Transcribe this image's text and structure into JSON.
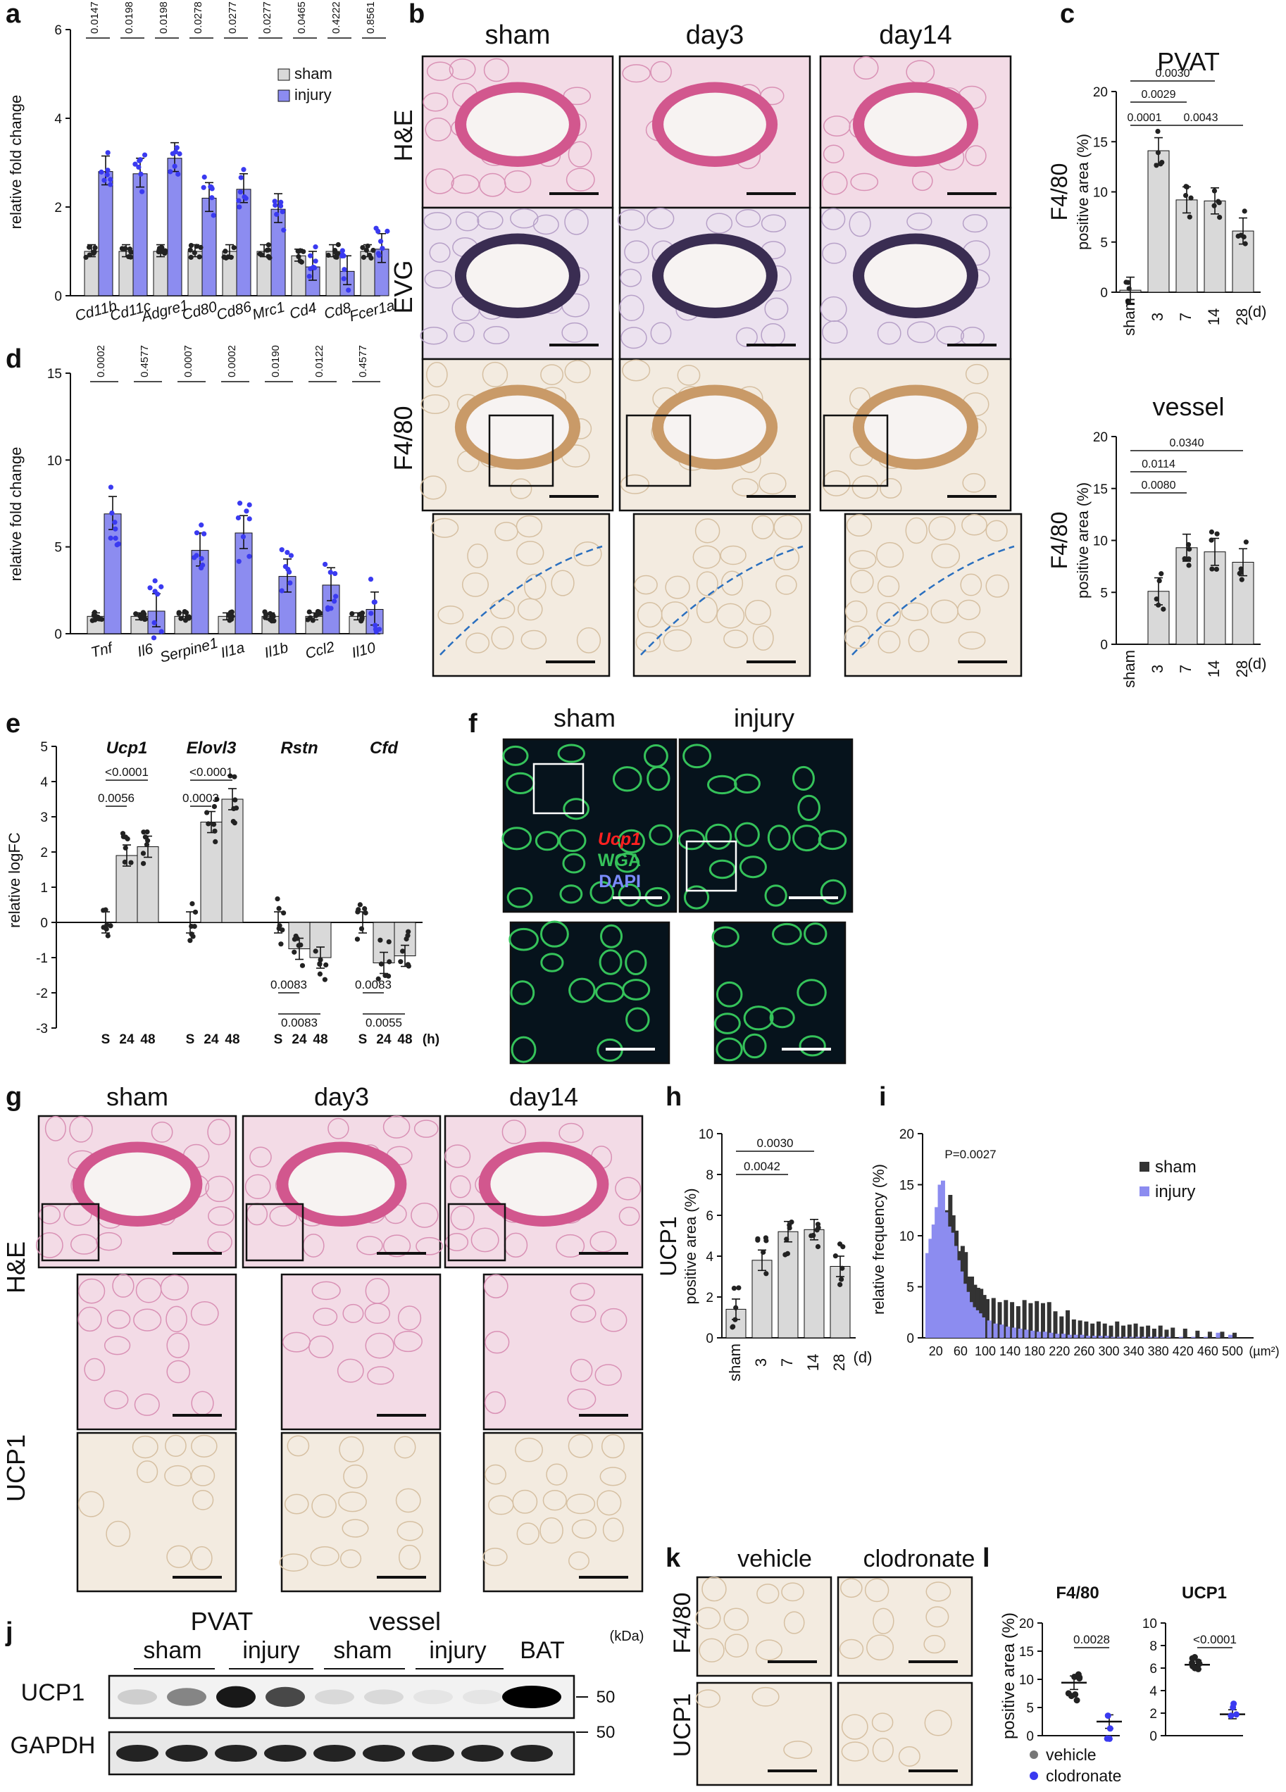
{
  "panels": {
    "a": {
      "label": "a",
      "ylabel": "relative fold change",
      "yticks": [
        "0",
        "2",
        "4",
        "6"
      ],
      "genes": [
        "Cd11b",
        "Cd11c",
        "Adgre1",
        "Cd80",
        "Cd86",
        "Mrc1",
        "Cd4",
        "Cd8",
        "Fcer1a"
      ],
      "pvalues": [
        "0.0147",
        "0.0198",
        "0.0198",
        "0.0278",
        "0.0277",
        "0.0277",
        "0.0465",
        "0.4222",
        "0.8561"
      ],
      "legend": [
        "sham",
        "injury"
      ]
    },
    "b": {
      "label": "b",
      "cols": [
        "sham",
        "day3",
        "day14"
      ],
      "rows": [
        "H&E",
        "EVG",
        "F4/80"
      ]
    },
    "c": {
      "label": "c",
      "titles": [
        "PVAT",
        "vessel"
      ],
      "ylabel1": "F4/80",
      "ylabel2": "positive area (%)",
      "yticks": [
        "0",
        "5",
        "10",
        "15",
        "20"
      ],
      "xcats": [
        "sham",
        "3",
        "7",
        "14",
        "28"
      ],
      "xunit": "(d)",
      "pvat_p": [
        "0.0030",
        "0.0029",
        "0.0001",
        "0.0043"
      ],
      "vessel_p": [
        "0.0340",
        "0.0114",
        "0.0080"
      ]
    },
    "d": {
      "label": "d",
      "ylabel": "relative fold change",
      "yticks": [
        "0",
        "5",
        "10",
        "15"
      ],
      "genes": [
        "Tnf",
        "Il6",
        "Serpine1",
        "Il1a",
        "Il1b",
        "Ccl2",
        "Il10"
      ],
      "pvalues": [
        "0.0002",
        "0.4577",
        "0.0007",
        "0.0002",
        "0.0190",
        "0.0122",
        "0.4577"
      ]
    },
    "e": {
      "label": "e",
      "ylabel": "relative logFC",
      "yticks": [
        "-3",
        "-2",
        "-1",
        "0",
        "1",
        "2",
        "3",
        "4",
        "5"
      ],
      "genes": [
        "Ucp1",
        "Elovl3",
        "Rstn",
        "Cfd"
      ],
      "xcats": [
        "S",
        "24",
        "48"
      ],
      "xunit": "(h)",
      "ucp1_p": [
        "<0.0001",
        "0.0056"
      ],
      "elovl3_p": [
        "<0.0001",
        "0.0003"
      ],
      "rstn_p": [
        "0.0083",
        "0.0083"
      ],
      "cfd_p": [
        "0.0083",
        "0.0055"
      ]
    },
    "f": {
      "label": "f",
      "cols": [
        "sham",
        "injury"
      ],
      "stains": [
        "Ucp1",
        "WGA",
        "DAPI"
      ]
    },
    "g": {
      "label": "g",
      "cols": [
        "sham",
        "day3",
        "day14"
      ],
      "rows": [
        "H&E",
        "UCP1"
      ]
    },
    "h": {
      "label": "h",
      "ylabel1": "UCP1",
      "ylabel2": "positive area (%)",
      "yticks": [
        "0",
        "2",
        "4",
        "6",
        "8",
        "10"
      ],
      "xcats": [
        "sham",
        "3",
        "7",
        "14",
        "28"
      ],
      "xunit": "(d)",
      "pvalues": [
        "0.0030",
        "0.0042"
      ]
    },
    "i": {
      "label": "i",
      "ylabel": "relative frequency (%)",
      "yticks": [
        "0",
        "5",
        "10",
        "15",
        "20"
      ],
      "xticks": [
        "20",
        "60",
        "100",
        "140",
        "180",
        "220",
        "260",
        "300",
        "340",
        "380",
        "420",
        "460",
        "500"
      ],
      "xunit": "(µm²)",
      "pvalue": "P=0.0027",
      "legend": [
        "sham",
        "injury"
      ]
    },
    "j": {
      "label": "j",
      "groups": [
        "PVAT",
        "vessel"
      ],
      "sub": [
        "sham",
        "injury",
        "sham",
        "injury",
        "BAT"
      ],
      "rows": [
        "UCP1",
        "GAPDH"
      ],
      "kda_label": "(kDa)",
      "kda": [
        "50",
        "50"
      ]
    },
    "k": {
      "label": "k",
      "cols": [
        "vehicle",
        "clodronate"
      ],
      "rows": [
        "F4/80",
        "UCP1"
      ]
    },
    "l": {
      "label": "l",
      "titles": [
        "F4/80",
        "UCP1"
      ],
      "ylabel": "positive area (%)",
      "yticks_f480": [
        "0",
        "5",
        "10",
        "15",
        "20"
      ],
      "yticks_ucp1": [
        "0",
        "2",
        "4",
        "6",
        "8",
        "10"
      ],
      "pvalues": [
        "0.0028",
        "<0.0001"
      ],
      "legend": [
        "vehicle",
        "clodronate"
      ]
    }
  },
  "colors": {
    "sham": "#d9d9d9",
    "injury": "#8c8cf0",
    "dot_sham": "#222222",
    "dot_injury": "#3a3af0",
    "he": "#e7a9c4",
    "evg": "#cdb7d8",
    "dab": "#e9d6bd",
    "fluor": "#0b2a3a"
  },
  "chart_data": [
    {
      "id": "a",
      "type": "bar",
      "categories": [
        "Cd11b",
        "Cd11c",
        "Adgre1",
        "Cd80",
        "Cd86",
        "Mrc1",
        "Cd4",
        "Cd8",
        "Fcer1a"
      ],
      "series": [
        {
          "name": "sham",
          "values": [
            1.0,
            1.0,
            1.0,
            1.0,
            1.0,
            1.0,
            0.9,
            1.0,
            1.0
          ]
        },
        {
          "name": "injury",
          "values": [
            2.8,
            2.75,
            3.1,
            2.2,
            2.4,
            1.95,
            0.65,
            0.55,
            1.05
          ]
        }
      ],
      "ylabel": "relative fold change",
      "ylim": [
        0,
        6
      ]
    },
    {
      "id": "c-pvat",
      "type": "bar",
      "categories": [
        "sham",
        "3",
        "7",
        "14",
        "28"
      ],
      "values": [
        0.2,
        14.1,
        9.2,
        9.1,
        6.1
      ],
      "title": "PVAT",
      "ylim": [
        0,
        20
      ]
    },
    {
      "id": "c-vessel",
      "type": "bar",
      "categories": [
        "sham",
        "3",
        "7",
        "14",
        "28"
      ],
      "values": [
        0,
        5.1,
        9.3,
        8.9,
        7.9
      ],
      "title": "vessel",
      "ylim": [
        0,
        20
      ]
    },
    {
      "id": "d",
      "type": "bar",
      "categories": [
        "Tnf",
        "Il6",
        "Serpine1",
        "Il1a",
        "Il1b",
        "Ccl2",
        "Il10"
      ],
      "series": [
        {
          "name": "sham",
          "values": [
            1.0,
            1.0,
            1.0,
            1.0,
            1.0,
            1.0,
            1.0
          ]
        },
        {
          "name": "injury",
          "values": [
            6.9,
            1.3,
            4.8,
            5.8,
            3.3,
            2.8,
            1.4
          ]
        }
      ],
      "ylabel": "relative fold change",
      "ylim": [
        0,
        15
      ]
    },
    {
      "id": "e",
      "type": "bar",
      "categories": [
        "Ucp1-S",
        "Ucp1-24",
        "Ucp1-48",
        "Elovl3-S",
        "Elovl3-24",
        "Elovl3-48",
        "Rstn-S",
        "Rstn-24",
        "Rstn-48",
        "Cfd-S",
        "Cfd-24",
        "Cfd-48"
      ],
      "values": [
        0.0,
        1.9,
        2.15,
        0.0,
        2.85,
        3.5,
        0.0,
        -0.75,
        -1.0,
        0.0,
        -1.15,
        -0.95
      ],
      "ylabel": "relative logFC",
      "ylim": [
        -3,
        5
      ]
    },
    {
      "id": "h",
      "type": "bar",
      "categories": [
        "sham",
        "3",
        "7",
        "14",
        "28"
      ],
      "values": [
        1.4,
        3.8,
        5.2,
        5.3,
        3.5
      ],
      "ylim": [
        0,
        10
      ]
    },
    {
      "id": "i",
      "type": "bar",
      "x": [
        10,
        15,
        20,
        25,
        30,
        35,
        40,
        45,
        50,
        55,
        60,
        65,
        70,
        75,
        80,
        85,
        90,
        95,
        100,
        110,
        120,
        130,
        140,
        150,
        160,
        170,
        180,
        190,
        200,
        210,
        220,
        230,
        240,
        250,
        260,
        270,
        280,
        290,
        300,
        310,
        320,
        330,
        340,
        350,
        360,
        370,
        380,
        390,
        400,
        420,
        440,
        460,
        480,
        500
      ],
      "series": [
        {
          "name": "sham",
          "values": [
            4.6,
            6.2,
            7.6,
            9.3,
            11.5,
            12.5,
            14,
            12,
            10.5,
            8.5,
            9,
            8.4,
            6,
            6,
            5.2,
            4.9,
            4.8,
            4.2,
            3.8,
            3.9,
            3.5,
            3.7,
            3.5,
            3.1,
            3.7,
            3.4,
            3.6,
            3.4,
            3.5,
            2.6,
            2.1,
            2.7,
            1.8,
            1.7,
            1.6,
            1.4,
            1.6,
            1.4,
            1.2,
            1.6,
            1.2,
            1.3,
            1.4,
            1.1,
            1.2,
            0.9,
            1.2,
            0.8,
            1.0,
            0.9,
            0.7,
            0.6,
            0.6,
            0.5
          ]
        },
        {
          "name": "injury",
          "values": [
            8.3,
            9.7,
            11.1,
            12.8,
            15.0,
            15.4,
            12.3,
            10.9,
            10.3,
            9.0,
            7.6,
            6.5,
            5.3,
            4.5,
            3.5,
            3.0,
            2.7,
            2.4,
            2.0,
            1.7,
            1.4,
            1.3,
            1.1,
            1.0,
            0.9,
            0.8,
            0.7,
            0.6,
            0.6,
            0.5,
            0.4,
            0.4,
            0.3,
            0.3,
            0.3,
            0.2,
            0.2,
            0.2,
            0.2,
            0.1,
            0.1,
            0.1,
            0.1,
            0.1,
            0.1,
            0.1,
            0.1,
            0.1,
            0.1,
            0.1,
            0.1,
            0.1,
            0.5,
            0.3
          ]
        }
      ],
      "ylabel": "relative frequency (%)",
      "ylim": [
        0,
        20
      ]
    },
    {
      "id": "l-f480",
      "type": "scatter",
      "categories": [
        "vehicle",
        "clodronate"
      ],
      "values": [
        9.4,
        2.5
      ],
      "title": "F4/80",
      "ylim": [
        0,
        20
      ]
    },
    {
      "id": "l-ucp1",
      "type": "scatter",
      "categories": [
        "vehicle",
        "clodronate"
      ],
      "values": [
        6.3,
        1.9
      ],
      "title": "UCP1",
      "ylim": [
        0,
        10
      ]
    }
  ]
}
